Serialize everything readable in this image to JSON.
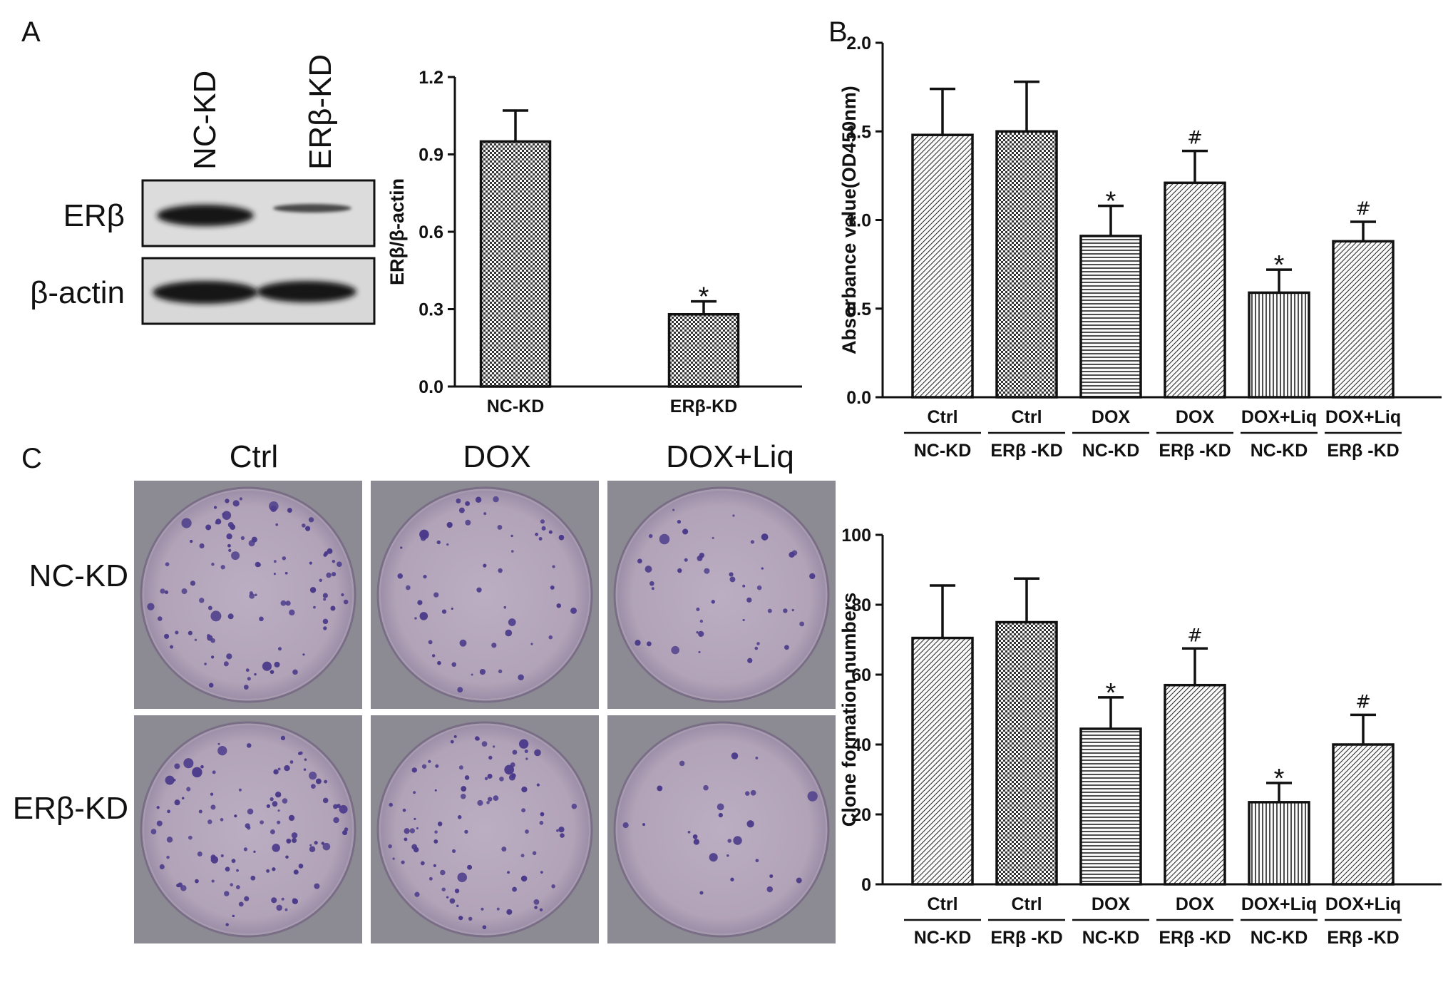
{
  "panels": {
    "A": "A",
    "B": "B",
    "C": "C"
  },
  "western_blot": {
    "lane_labels": [
      "NC-KD",
      "ERβ-KD"
    ],
    "row_labels": [
      "ERβ",
      "β-actin"
    ]
  },
  "colony_images": {
    "column_labels": [
      "Ctrl",
      "DOX",
      "DOX+Liq"
    ],
    "row_labels": [
      "NC-KD",
      "ERβ-KD"
    ]
  },
  "colors": {
    "ink": "#111111",
    "blot_background": "#dcdcdc",
    "plate_background": "#8c8a93",
    "plate_fill": "#b7a9bc",
    "colony": "#4a3a8a"
  },
  "chart_data": [
    {
      "id": "chartA",
      "type": "bar",
      "categories": [
        "NC-KD",
        "ERβ-KD"
      ],
      "values": [
        0.95,
        0.28
      ],
      "errors": [
        0.12,
        0.05
      ],
      "markers": [
        "",
        "*"
      ],
      "patterns": [
        "grid",
        "grid"
      ],
      "ylabel": "ERβ/β-actin",
      "ylim": [
        0.0,
        1.2
      ],
      "yticks": [
        "0.0",
        "0.3",
        "0.6",
        "0.9",
        "1.2"
      ],
      "subgroups": []
    },
    {
      "id": "chartB",
      "type": "bar",
      "categories": [
        "Ctrl",
        "Ctrl",
        "DOX",
        "DOX",
        "DOX+Liq",
        "DOX+Liq"
      ],
      "subgroups": [
        "NC-KD",
        "ERβ -KD",
        "NC-KD",
        "ERβ -KD",
        "NC-KD",
        "ERβ -KD"
      ],
      "values": [
        1.48,
        1.5,
        0.91,
        1.21,
        0.59,
        0.88
      ],
      "errors": [
        0.26,
        0.28,
        0.17,
        0.18,
        0.13,
        0.11
      ],
      "markers": [
        "",
        "",
        "*",
        "#",
        "*",
        "#"
      ],
      "patterns": [
        "hatch",
        "grid",
        "horizontal",
        "hatch",
        "vertical",
        "hatch"
      ],
      "ylabel": "Absorbance value(OD450nm)",
      "ylim": [
        0.0,
        2.0
      ],
      "yticks": [
        "0.0",
        "0.5",
        "1.0",
        "1.5",
        "2.0"
      ]
    },
    {
      "id": "chartC",
      "type": "bar",
      "categories": [
        "Ctrl",
        "Ctrl",
        "DOX",
        "DOX",
        "DOX+Liq",
        "DOX+Liq"
      ],
      "subgroups": [
        "NC-KD",
        "ERβ -KD",
        "NC-KD",
        "ERβ -KD",
        "NC-KD",
        "ERβ -KD"
      ],
      "values": [
        70.5,
        75,
        44.5,
        57,
        23.5,
        40
      ],
      "errors": [
        15,
        12.5,
        9,
        10.5,
        5.5,
        8.5
      ],
      "markers": [
        "",
        "",
        "*",
        "#",
        "*",
        "#"
      ],
      "patterns": [
        "hatch",
        "grid",
        "horizontal",
        "hatch",
        "vertical",
        "hatch"
      ],
      "ylabel": "Clone formation numbers",
      "ylim": [
        0,
        100
      ],
      "yticks": [
        "0",
        "20",
        "40",
        "60",
        "80",
        "100"
      ]
    }
  ]
}
